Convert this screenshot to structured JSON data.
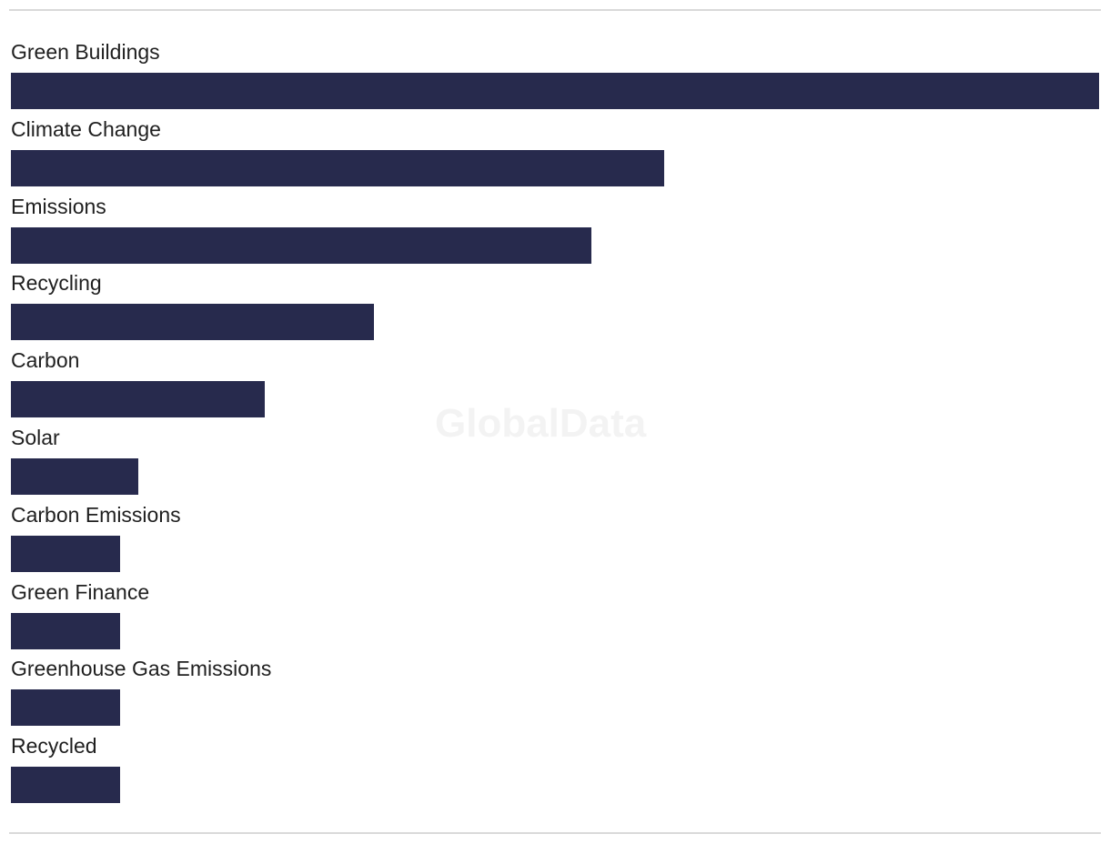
{
  "watermark": "GlobalData",
  "colors": {
    "bar": "#272a4d",
    "rule": "#d9d9d9"
  },
  "chart_data": {
    "type": "bar",
    "orientation": "horizontal",
    "categories": [
      "Green Buildings",
      "Climate Change",
      "Emissions",
      "Recycling",
      "Carbon",
      "Solar",
      "Carbon Emissions",
      "Green Finance",
      "Greenhouse Gas Emissions",
      "Recycled"
    ],
    "values": [
      60,
      36,
      32,
      20,
      14,
      7,
      6,
      6,
      6,
      6
    ],
    "xlim": [
      0,
      60
    ],
    "grid": false,
    "legend": "none"
  }
}
